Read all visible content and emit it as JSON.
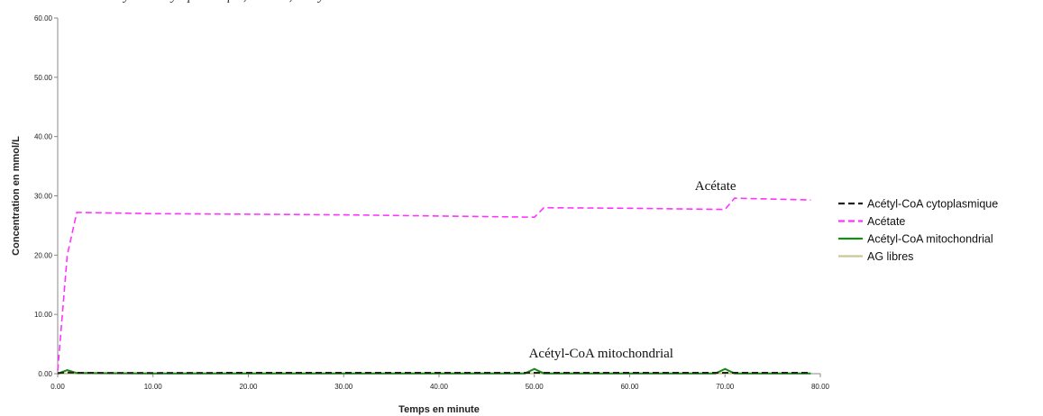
{
  "caption": "Concentration en acétyl-CoA cytoplasmique, acétate, acétyl-CoA mitochondrial et AG libres",
  "chart_data": {
    "type": "line",
    "title": "",
    "xlabel": "Temps en minute",
    "ylabel": "Concentration en mmol/L",
    "xlim": [
      0,
      80
    ],
    "ylim": [
      0,
      60
    ],
    "x_ticks": [
      "0.00",
      "10.00",
      "20.00",
      "30.00",
      "40.00",
      "50.00",
      "60.00",
      "70.00",
      "80.00"
    ],
    "y_ticks": [
      "0.00",
      "10.00",
      "20.00",
      "30.00",
      "40.00",
      "50.00",
      "60.00"
    ],
    "grid": false,
    "legend_position": "right",
    "series": [
      {
        "name": "Acétyl-CoA cytoplasmique",
        "color": "#222222",
        "dash": "dashed",
        "x": [
          0,
          1,
          2,
          10,
          20,
          30,
          40,
          50,
          60,
          70,
          79
        ],
        "y": [
          0.1,
          0.2,
          0.15,
          0.12,
          0.15,
          0.15,
          0.15,
          0.15,
          0.15,
          0.15,
          0.15
        ]
      },
      {
        "name": "Acétate",
        "color": "#ff33ff",
        "dash": "dashed",
        "x": [
          0,
          1,
          2,
          10,
          20,
          30,
          40,
          50,
          51,
          60,
          70,
          71,
          79
        ],
        "y": [
          0.5,
          20,
          27.2,
          27.0,
          26.9,
          26.8,
          26.6,
          26.4,
          28.0,
          27.9,
          27.7,
          29.6,
          29.3
        ]
      },
      {
        "name": "Acétyl-CoA mitochondrial",
        "color": "#1a8a1a",
        "dash": "solid",
        "x": [
          0,
          1,
          2,
          10,
          49,
          50,
          51,
          69,
          70,
          71,
          79
        ],
        "y": [
          0,
          0.6,
          0.1,
          0.05,
          0.05,
          0.8,
          0.05,
          0.05,
          0.8,
          0.05,
          0.05
        ]
      },
      {
        "name": "AG libres",
        "color": "#c8c89a",
        "dash": "solid",
        "x": [
          0,
          10,
          20,
          30,
          40,
          50,
          60,
          70,
          79
        ],
        "y": [
          0.05,
          0.05,
          0.05,
          0.05,
          0.05,
          0.05,
          0.05,
          0.05,
          0.05
        ]
      }
    ],
    "annotations": [
      {
        "text": "Acétate",
        "x": 69,
        "y": 31
      },
      {
        "text": "Acétyl-CoA mitochondrial",
        "x": 57,
        "y": 2.7
      }
    ]
  }
}
